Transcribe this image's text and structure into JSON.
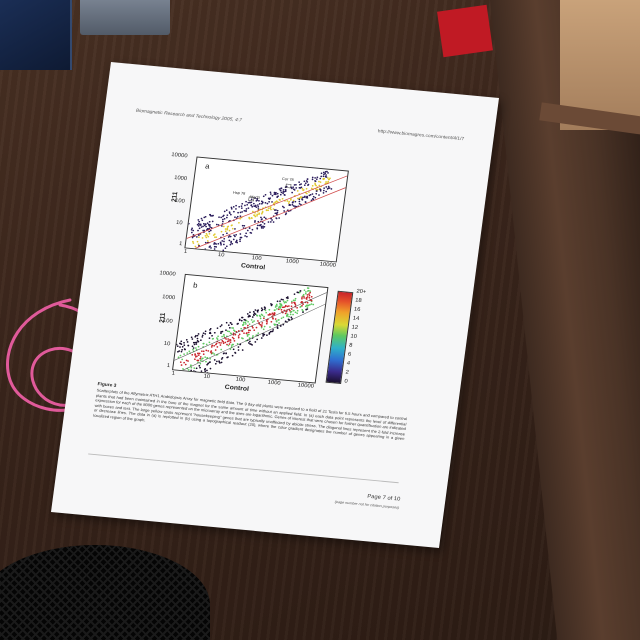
{
  "document": {
    "journal_header": "Biomagnetic Research and Technology 2005, 4:7",
    "url": "http://www.biomagres.com/content/4/1/7",
    "figure": {
      "panel_a_letter": "a",
      "panel_b_letter": "b",
      "y_axis_label": "211",
      "x_axis_label": "Control",
      "axis_ticks": [
        "1",
        "10",
        "100",
        "1000",
        "10000"
      ],
      "annotations": [
        "Cor 78",
        "Hsp 78",
        "Mad3"
      ],
      "colorbar_ticks": [
        "20+",
        "18",
        "16",
        "14",
        "12",
        "10",
        "8",
        "6",
        "4",
        "2",
        "0"
      ],
      "colors": {
        "low": "#1a0f2e",
        "mid": "#5ec960",
        "high": "#c8242a",
        "points_dark": "#2b1d5c",
        "points_bright": "#e0c92e",
        "diagonal_lines": "#d04a4a"
      }
    },
    "figure_title": "Figure 3",
    "caption": "Scatterplots of the Affymetrix ATH1 Arabidopsis Array for magnetic field data. The 9 day-old plants were exposed to a field of 21 Tesla for 6.5 hours and compared to control plants that had been maintained in the bore of the magnet for the same amount of time without an applied field. In (a) each data point represents the level of differential expression for each of the 8000 genes represented on the microarray and the axes are logarithmic. Genes of interest that were chosen for further quantification are indicated with boxes and text. The large yellow spots represent \"housekeeping\" genes that are typically unaffected by abiotic stress. The diagonal lines represent the 2-fold increase or decrease lines. The data in (a) is replotted in (b) using a topographical readout (20), where the color gradient designates the number of genes appearing in a given localized region of the graph.",
    "page_number": "Page 7 of 10",
    "page_note": "(page number not for citation purposes)"
  }
}
